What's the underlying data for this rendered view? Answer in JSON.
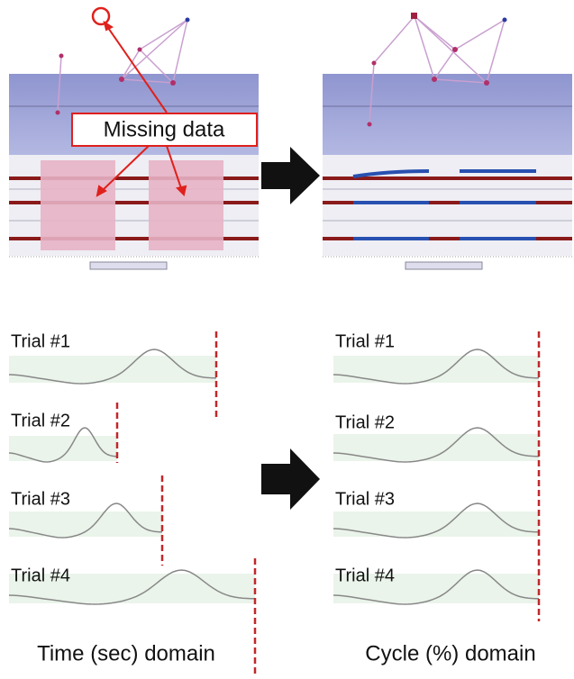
{
  "callout": "Missing data",
  "left_panel": {
    "trials": [
      "Trial #1",
      "Trial #2",
      "Trial #3",
      "Trial #4"
    ],
    "caption": "Time (sec) domain"
  },
  "right_panel": {
    "trials": [
      "Trial #1",
      "Trial #2",
      "Trial #3",
      "Trial #4"
    ],
    "caption": "Cycle (%) domain"
  }
}
